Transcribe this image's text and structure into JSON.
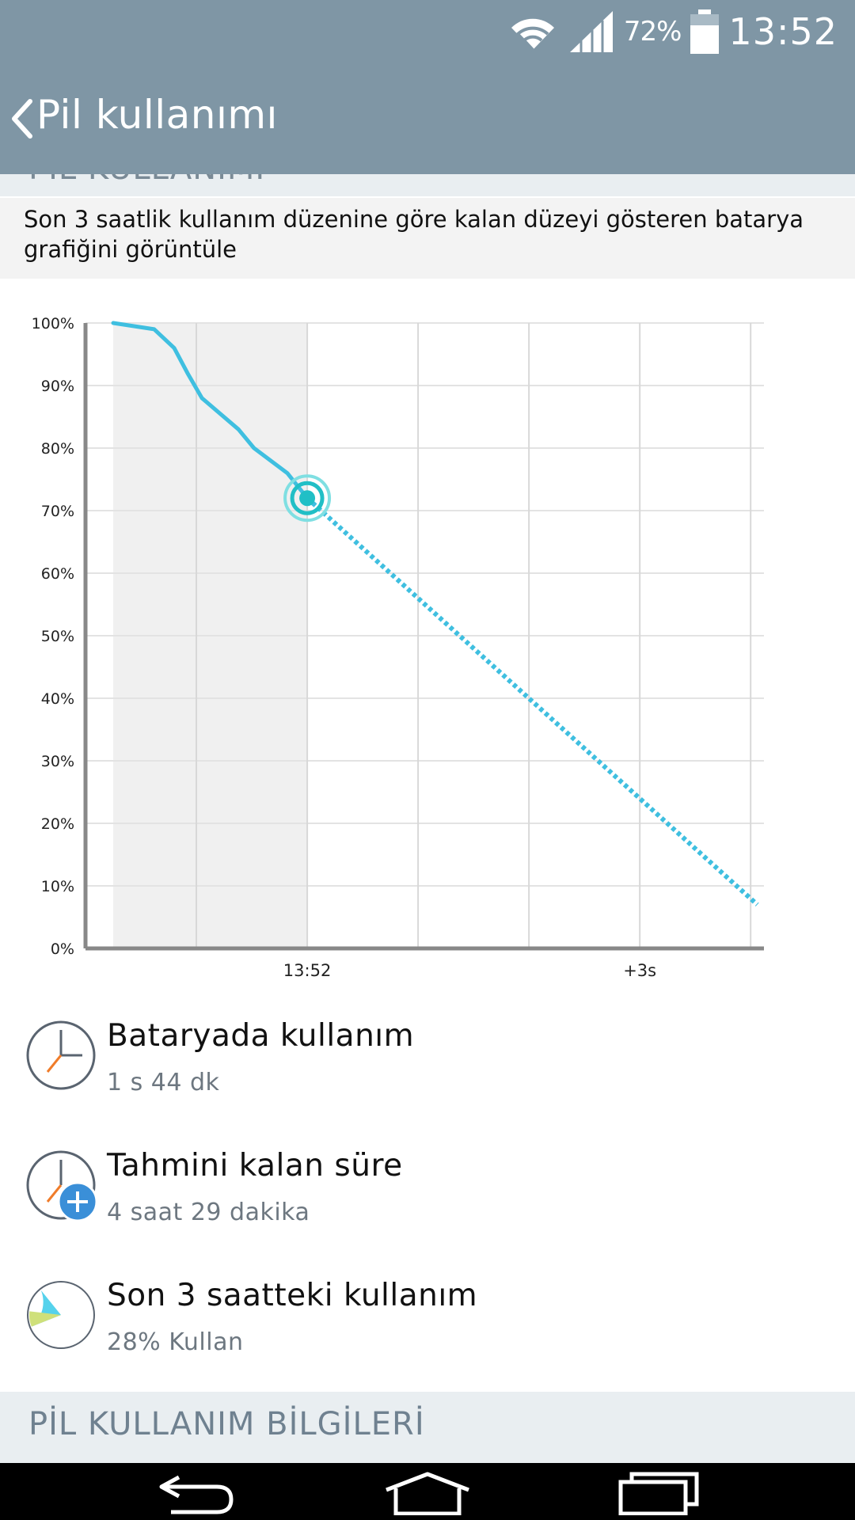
{
  "status": {
    "battery_pct": "72%",
    "time": "13:52",
    "icons": [
      "wifi-icon",
      "signal-icon",
      "battery-icon"
    ]
  },
  "appbar": {
    "title": "Pil kullanımı"
  },
  "section1": {
    "label": "PİL KULLANIMI",
    "description": "Son 3 saatlik kullanım düzenine göre kalan düzeyi gösteren batarya grafiğini görüntüle"
  },
  "chart_data": {
    "type": "line",
    "x_ticks": [
      "13:52",
      "+3s"
    ],
    "y_ticks": [
      "100%",
      "90%",
      "80%",
      "70%",
      "60%",
      "50%",
      "40%",
      "30%",
      "20%",
      "10%",
      "0%"
    ],
    "ylim": [
      0,
      100
    ],
    "x_unit": "hours relative to now",
    "series": [
      {
        "style": "solid",
        "x": [
          -1.75,
          -1.38,
          -1.2,
          -1.08,
          -0.95,
          -0.62,
          -0.48,
          -0.18,
          0
        ],
        "y": [
          100,
          99,
          96,
          92,
          88,
          83,
          80,
          76,
          72
        ]
      },
      {
        "style": "dotted",
        "x": [
          0,
          4.06
        ],
        "y": [
          72,
          7
        ]
      }
    ],
    "colors": {
      "line": "#3fbfe0",
      "marker": "#21bfc6",
      "shade": "#f0f0f0",
      "grid": "#e3e3e3",
      "axis": "#888888"
    }
  },
  "rows": [
    {
      "title": "Bataryada kullanım",
      "value": "1 s 44 dk",
      "icon": "clock-icon"
    },
    {
      "title": "Tahmini kalan süre",
      "value": "4 saat 29 dakika",
      "icon": "clock-plus-icon"
    },
    {
      "title": "Son 3 saatteki kullanım",
      "value": "28% Kullan",
      "icon": "pie-icon",
      "pie_fraction": 0.28
    }
  ],
  "section2": {
    "label": "PİL KULLANIM BİLGİLERİ"
  },
  "navbar": {
    "icons": [
      "back-icon",
      "home-icon",
      "recents-icon"
    ]
  }
}
